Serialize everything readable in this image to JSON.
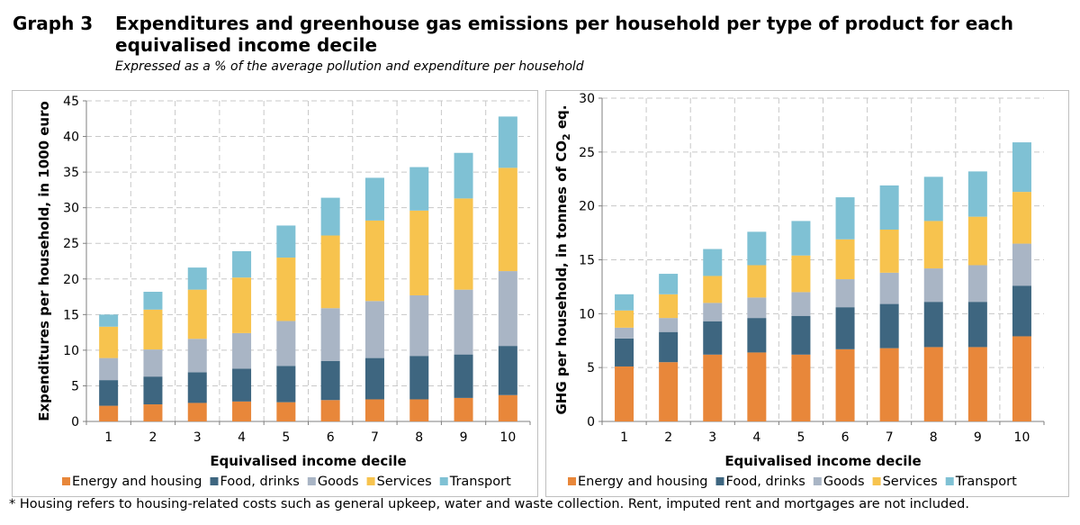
{
  "header": {
    "graph_label": "Graph 3",
    "title": "Expenditures and greenhouse gas emissions per household per type of product for each equivalised income decile",
    "subtitle": "Expressed as a % of the average pollution and expenditure per household"
  },
  "footnote": "* Housing refers to housing-related costs such as general upkeep, water and waste collection. Rent, imputed rent and mortgages are not included.",
  "colors": {
    "Energy and housing": "#E8873A",
    "Food, drinks": "#3E6680",
    "Goods": "#A9B5C5",
    "Services": "#F7C34E",
    "Transport": "#7FC1D4"
  },
  "chart_data": [
    {
      "type": "bar",
      "stacked": true,
      "title": "",
      "xlabel": "Equivalised income decile",
      "ylabel": "Expenditures per household, in  1000 euro",
      "ylim": [
        0,
        45
      ],
      "yticks": [
        0,
        5,
        10,
        15,
        20,
        25,
        30,
        35,
        40,
        45
      ],
      "grid": true,
      "legend": "bottom",
      "categories": [
        "1",
        "2",
        "3",
        "4",
        "5",
        "6",
        "7",
        "8",
        "9",
        "10"
      ],
      "series": [
        {
          "name": "Energy and housing",
          "values": [
            2.2,
            2.4,
            2.6,
            2.8,
            2.7,
            3.0,
            3.1,
            3.1,
            3.3,
            3.7
          ]
        },
        {
          "name": "Food, drinks",
          "values": [
            3.6,
            3.9,
            4.3,
            4.6,
            5.1,
            5.5,
            5.8,
            6.1,
            6.1,
            6.9
          ]
        },
        {
          "name": "Goods",
          "values": [
            3.1,
            3.8,
            4.7,
            5.0,
            6.3,
            7.4,
            8.0,
            8.5,
            9.1,
            10.5
          ]
        },
        {
          "name": "Services",
          "values": [
            4.4,
            5.6,
            6.9,
            7.8,
            8.9,
            10.2,
            11.3,
            11.9,
            12.8,
            14.5
          ]
        },
        {
          "name": "Transport",
          "values": [
            1.7,
            2.5,
            3.1,
            3.7,
            4.5,
            5.3,
            6.0,
            6.1,
            6.4,
            7.2
          ]
        }
      ]
    },
    {
      "type": "bar",
      "stacked": true,
      "title": "",
      "xlabel": "Equivalised income decile",
      "ylabel": "GHG per household, in tonnes of CO2 eq.",
      "ylim": [
        0,
        30
      ],
      "yticks": [
        0,
        5,
        10,
        15,
        20,
        25,
        30
      ],
      "grid": true,
      "legend": "bottom",
      "categories": [
        "1",
        "2",
        "3",
        "4",
        "5",
        "6",
        "7",
        "8",
        "9",
        "10"
      ],
      "series": [
        {
          "name": "Energy and housing",
          "values": [
            5.1,
            5.5,
            6.2,
            6.4,
            6.2,
            6.7,
            6.8,
            6.9,
            6.9,
            7.9
          ]
        },
        {
          "name": "Food, drinks",
          "values": [
            2.6,
            2.8,
            3.1,
            3.2,
            3.6,
            3.9,
            4.1,
            4.2,
            4.2,
            4.7
          ]
        },
        {
          "name": "Goods",
          "values": [
            1.0,
            1.3,
            1.7,
            1.9,
            2.2,
            2.6,
            2.9,
            3.1,
            3.4,
            3.9
          ]
        },
        {
          "name": "Services",
          "values": [
            1.6,
            2.2,
            2.5,
            3.0,
            3.4,
            3.7,
            4.0,
            4.4,
            4.5,
            4.8
          ]
        },
        {
          "name": "Transport",
          "values": [
            1.5,
            1.9,
            2.5,
            3.1,
            3.2,
            3.9,
            4.1,
            4.1,
            4.2,
            4.6
          ]
        }
      ]
    }
  ]
}
